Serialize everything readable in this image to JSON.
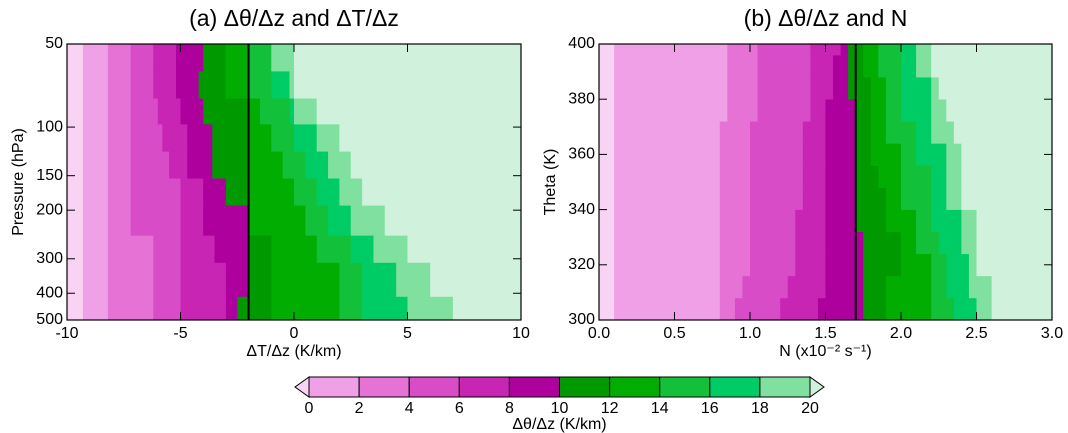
{
  "chart_data": [
    {
      "type": "contour",
      "title": "(a) Δθ/Δz and ΔT/Δz",
      "xlabel": "ΔT/Δz (K/km)",
      "ylabel": "Pressure (hPa)",
      "xlim": [
        -10,
        10
      ],
      "ylim": [
        500,
        50
      ],
      "log_y": true,
      "xticks": [
        -10,
        -5,
        0,
        5,
        10
      ],
      "yticks": [
        50,
        100,
        150,
        200,
        300,
        400,
        500
      ],
      "vline": -2,
      "row_edges": [
        50,
        63,
        79,
        98,
        123,
        154,
        193,
        248,
        311,
        413,
        500
      ],
      "boundaries": [
        [
          -9.3,
          -8.2,
          -7.2,
          -6.2,
          -5.2,
          -4.0,
          -3.0,
          -2.0,
          -1.0,
          -1.0,
          0.0
        ],
        [
          -9.3,
          -8.2,
          -7.2,
          -6.2,
          -5.2,
          -4.2,
          -3.0,
          -2.0,
          -1.0,
          -0.2,
          0.0
        ],
        [
          -9.3,
          -8.2,
          -7.2,
          -6.0,
          -5.0,
          -4.0,
          -2.0,
          -1.5,
          -0.2,
          0.0,
          1.0
        ],
        [
          -9.3,
          -8.2,
          -7.2,
          -5.8,
          -4.7,
          -3.6,
          -2.0,
          -1.0,
          0.0,
          1.0,
          2.0
        ],
        [
          -9.3,
          -8.2,
          -7.2,
          -5.5,
          -4.7,
          -3.6,
          -2.0,
          -0.5,
          0.5,
          1.5,
          2.5
        ],
        [
          -9.3,
          -8.2,
          -7.2,
          -5.0,
          -4.0,
          -3.0,
          -2.0,
          0.0,
          1.0,
          2.0,
          3.0
        ],
        [
          -9.3,
          -8.2,
          -7.2,
          -5.0,
          -4.0,
          -2.0,
          -2.0,
          0.5,
          1.5,
          2.5,
          4.0
        ],
        [
          -9.3,
          -8.2,
          -6.2,
          -5.0,
          -3.5,
          -2.0,
          -1.0,
          1.0,
          2.5,
          3.5,
          5.0
        ],
        [
          -9.3,
          -8.2,
          -6.2,
          -5.0,
          -3.0,
          -2.0,
          -1.0,
          2.0,
          3.0,
          4.5,
          6.0
        ],
        [
          -9.3,
          -8.2,
          -6.2,
          -5.0,
          -3.0,
          -2.5,
          -1.0,
          2.0,
          3.0,
          5.0,
          7.0
        ]
      ]
    },
    {
      "type": "contour",
      "title": "(b) Δθ/Δz  and N",
      "xlabel": "N (x10⁻² s⁻¹)",
      "ylabel": "Theta (K)",
      "xlim": [
        0,
        3
      ],
      "ylim": [
        300,
        400
      ],
      "log_y": false,
      "xticks": [
        {
          "value": 0,
          "label": "0.0"
        },
        {
          "value": 0.5,
          "label": "0.5"
        },
        {
          "value": 1,
          "label": "1.0"
        },
        {
          "value": 1.5,
          "label": "1.5"
        },
        {
          "value": 2,
          "label": "2.0"
        },
        {
          "value": 2.5,
          "label": "2.5"
        },
        {
          "value": 3,
          "label": "3.0"
        }
      ],
      "yticks": [
        300,
        320,
        340,
        360,
        380,
        400
      ],
      "vline": 1.7,
      "row_edges": [
        300,
        308,
        316,
        324,
        332,
        340,
        348,
        356,
        364,
        372,
        380,
        388,
        396,
        400
      ],
      "boundaries": [
        [
          0.1,
          0.8,
          0.9,
          1.2,
          1.45,
          1.75,
          1.9,
          2.2,
          2.35,
          2.5,
          2.6
        ],
        [
          0.1,
          0.8,
          0.95,
          1.25,
          1.5,
          1.75,
          1.9,
          2.2,
          2.3,
          2.45,
          2.6
        ],
        [
          0.1,
          0.8,
          1.0,
          1.3,
          1.5,
          1.75,
          2.0,
          2.2,
          2.3,
          2.45,
          2.5
        ],
        [
          0.1,
          0.8,
          1.0,
          1.3,
          1.5,
          1.75,
          2.0,
          2.1,
          2.25,
          2.4,
          2.5
        ],
        [
          0.1,
          0.8,
          1.0,
          1.3,
          1.5,
          1.7,
          1.9,
          2.1,
          2.2,
          2.4,
          2.5
        ],
        [
          0.1,
          0.8,
          1.0,
          1.35,
          1.5,
          1.7,
          1.9,
          2.0,
          2.2,
          2.3,
          2.4
        ],
        [
          0.1,
          0.8,
          1.0,
          1.35,
          1.5,
          1.7,
          1.85,
          2.0,
          2.2,
          2.3,
          2.4
        ],
        [
          0.1,
          0.8,
          1.0,
          1.35,
          1.5,
          1.7,
          1.8,
          2.0,
          2.1,
          2.3,
          2.4
        ],
        [
          0.1,
          0.8,
          1.0,
          1.35,
          1.5,
          1.7,
          1.8,
          1.9,
          2.1,
          2.2,
          2.35
        ],
        [
          0.1,
          0.85,
          1.05,
          1.4,
          1.5,
          1.7,
          1.8,
          1.9,
          2.0,
          2.2,
          2.3
        ],
        [
          0.1,
          0.85,
          1.05,
          1.4,
          1.55,
          1.65,
          1.8,
          1.9,
          2.0,
          2.2,
          2.25
        ],
        [
          0.1,
          0.85,
          1.05,
          1.4,
          1.55,
          1.65,
          1.75,
          1.85,
          2.0,
          2.1,
          2.2
        ],
        [
          0.1,
          0.85,
          1.05,
          1.4,
          1.6,
          1.65,
          1.75,
          1.85,
          2.0,
          2.1,
          2.2
        ]
      ]
    },
    {
      "type": "colorbar",
      "label": "Δθ/Δz (K/km)",
      "levels": [
        0,
        2,
        4,
        6,
        8,
        10,
        12,
        14,
        16,
        18,
        20
      ],
      "colors": [
        "#f0a0e6",
        "#e672d6",
        "#d84cc8",
        "#c825b4",
        "#ad009c",
        "#009a00",
        "#00ad00",
        "#13c03a",
        "#00cc66",
        "#80e0a0"
      ],
      "under_color": "#f9d3f3",
      "over_color": "#d0f2dc"
    }
  ]
}
